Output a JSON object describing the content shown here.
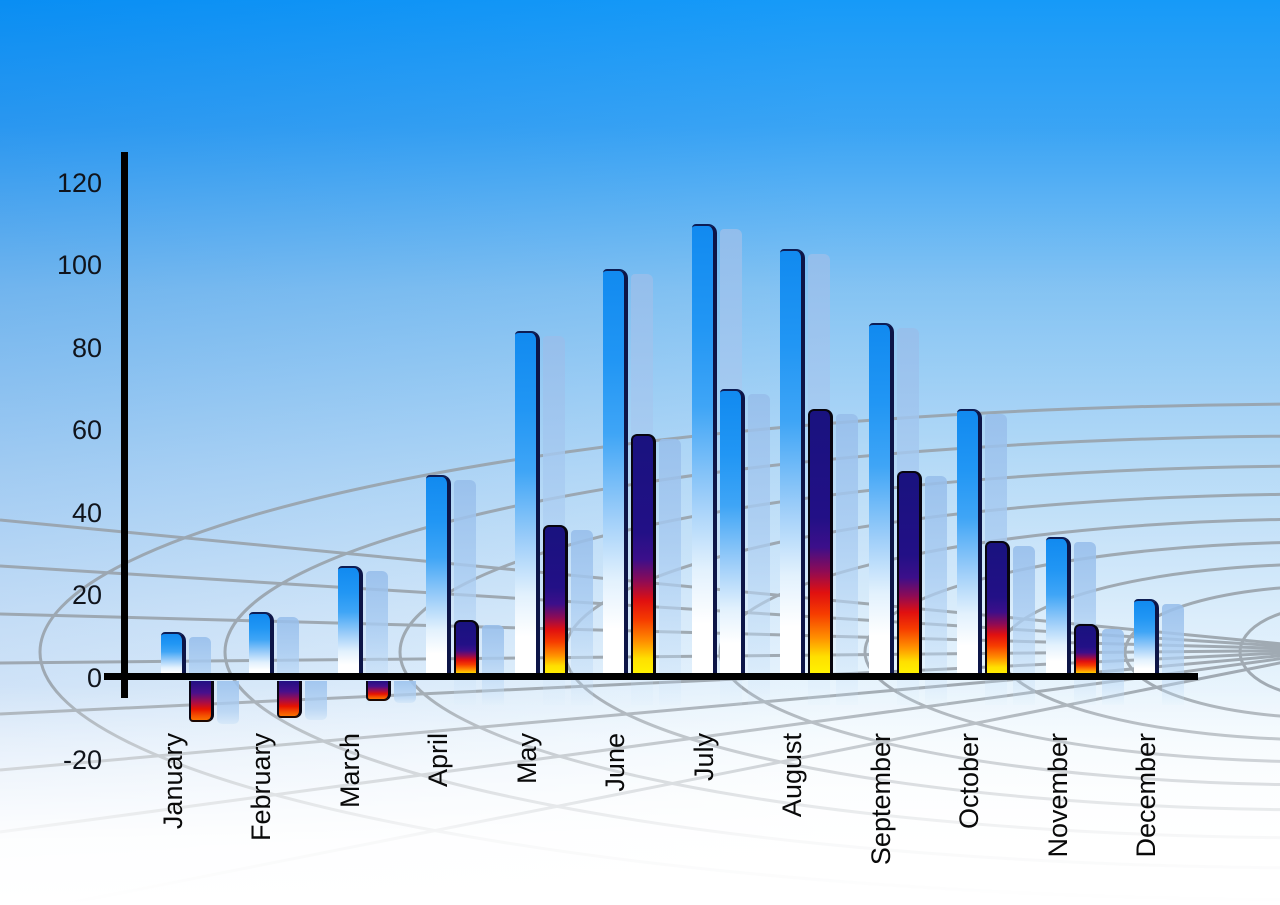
{
  "chart_data": {
    "type": "bar",
    "title": "",
    "xlabel": "",
    "ylabel": "",
    "categories": [
      "January",
      "February",
      "March",
      "April",
      "May",
      "June",
      "July",
      "August",
      "September",
      "October",
      "November",
      "December"
    ],
    "series": [
      {
        "name": "series-1-blue",
        "values": [
          11,
          16,
          27,
          49,
          84,
          99,
          110,
          104,
          86,
          65,
          34,
          19
        ]
      },
      {
        "name": "series-2-flame",
        "values": [
          -10,
          -9,
          -5,
          14,
          37,
          59,
          70,
          65,
          50,
          33,
          13,
          null
        ],
        "styles": [
          "flame-neg",
          "flame-neg",
          "flame-neg",
          "flame",
          "flame",
          "flame",
          "blue",
          "flame",
          "flame",
          "flame",
          "flame",
          null
        ]
      }
    ],
    "y_ticks": [
      120,
      100,
      80,
      60,
      40,
      20,
      0,
      -20
    ],
    "ylim": [
      -20,
      120
    ],
    "legend": "none",
    "grid": "curved perspective mesh",
    "background": "blue sky gradient fading to white"
  },
  "colors": {
    "sky_top": "#0a95f8",
    "bar_blue_top": "#118af0",
    "bar_blue_bottom": "#ffffff",
    "bar_edge_navy": "#0d1547",
    "flame_navy": "#19127f",
    "flame_red": "#e61300",
    "flame_yellow": "#fff800",
    "shadow_blue": "#a8cbf1",
    "axis_black": "#000000",
    "grid_gray": "#98a1a9"
  }
}
